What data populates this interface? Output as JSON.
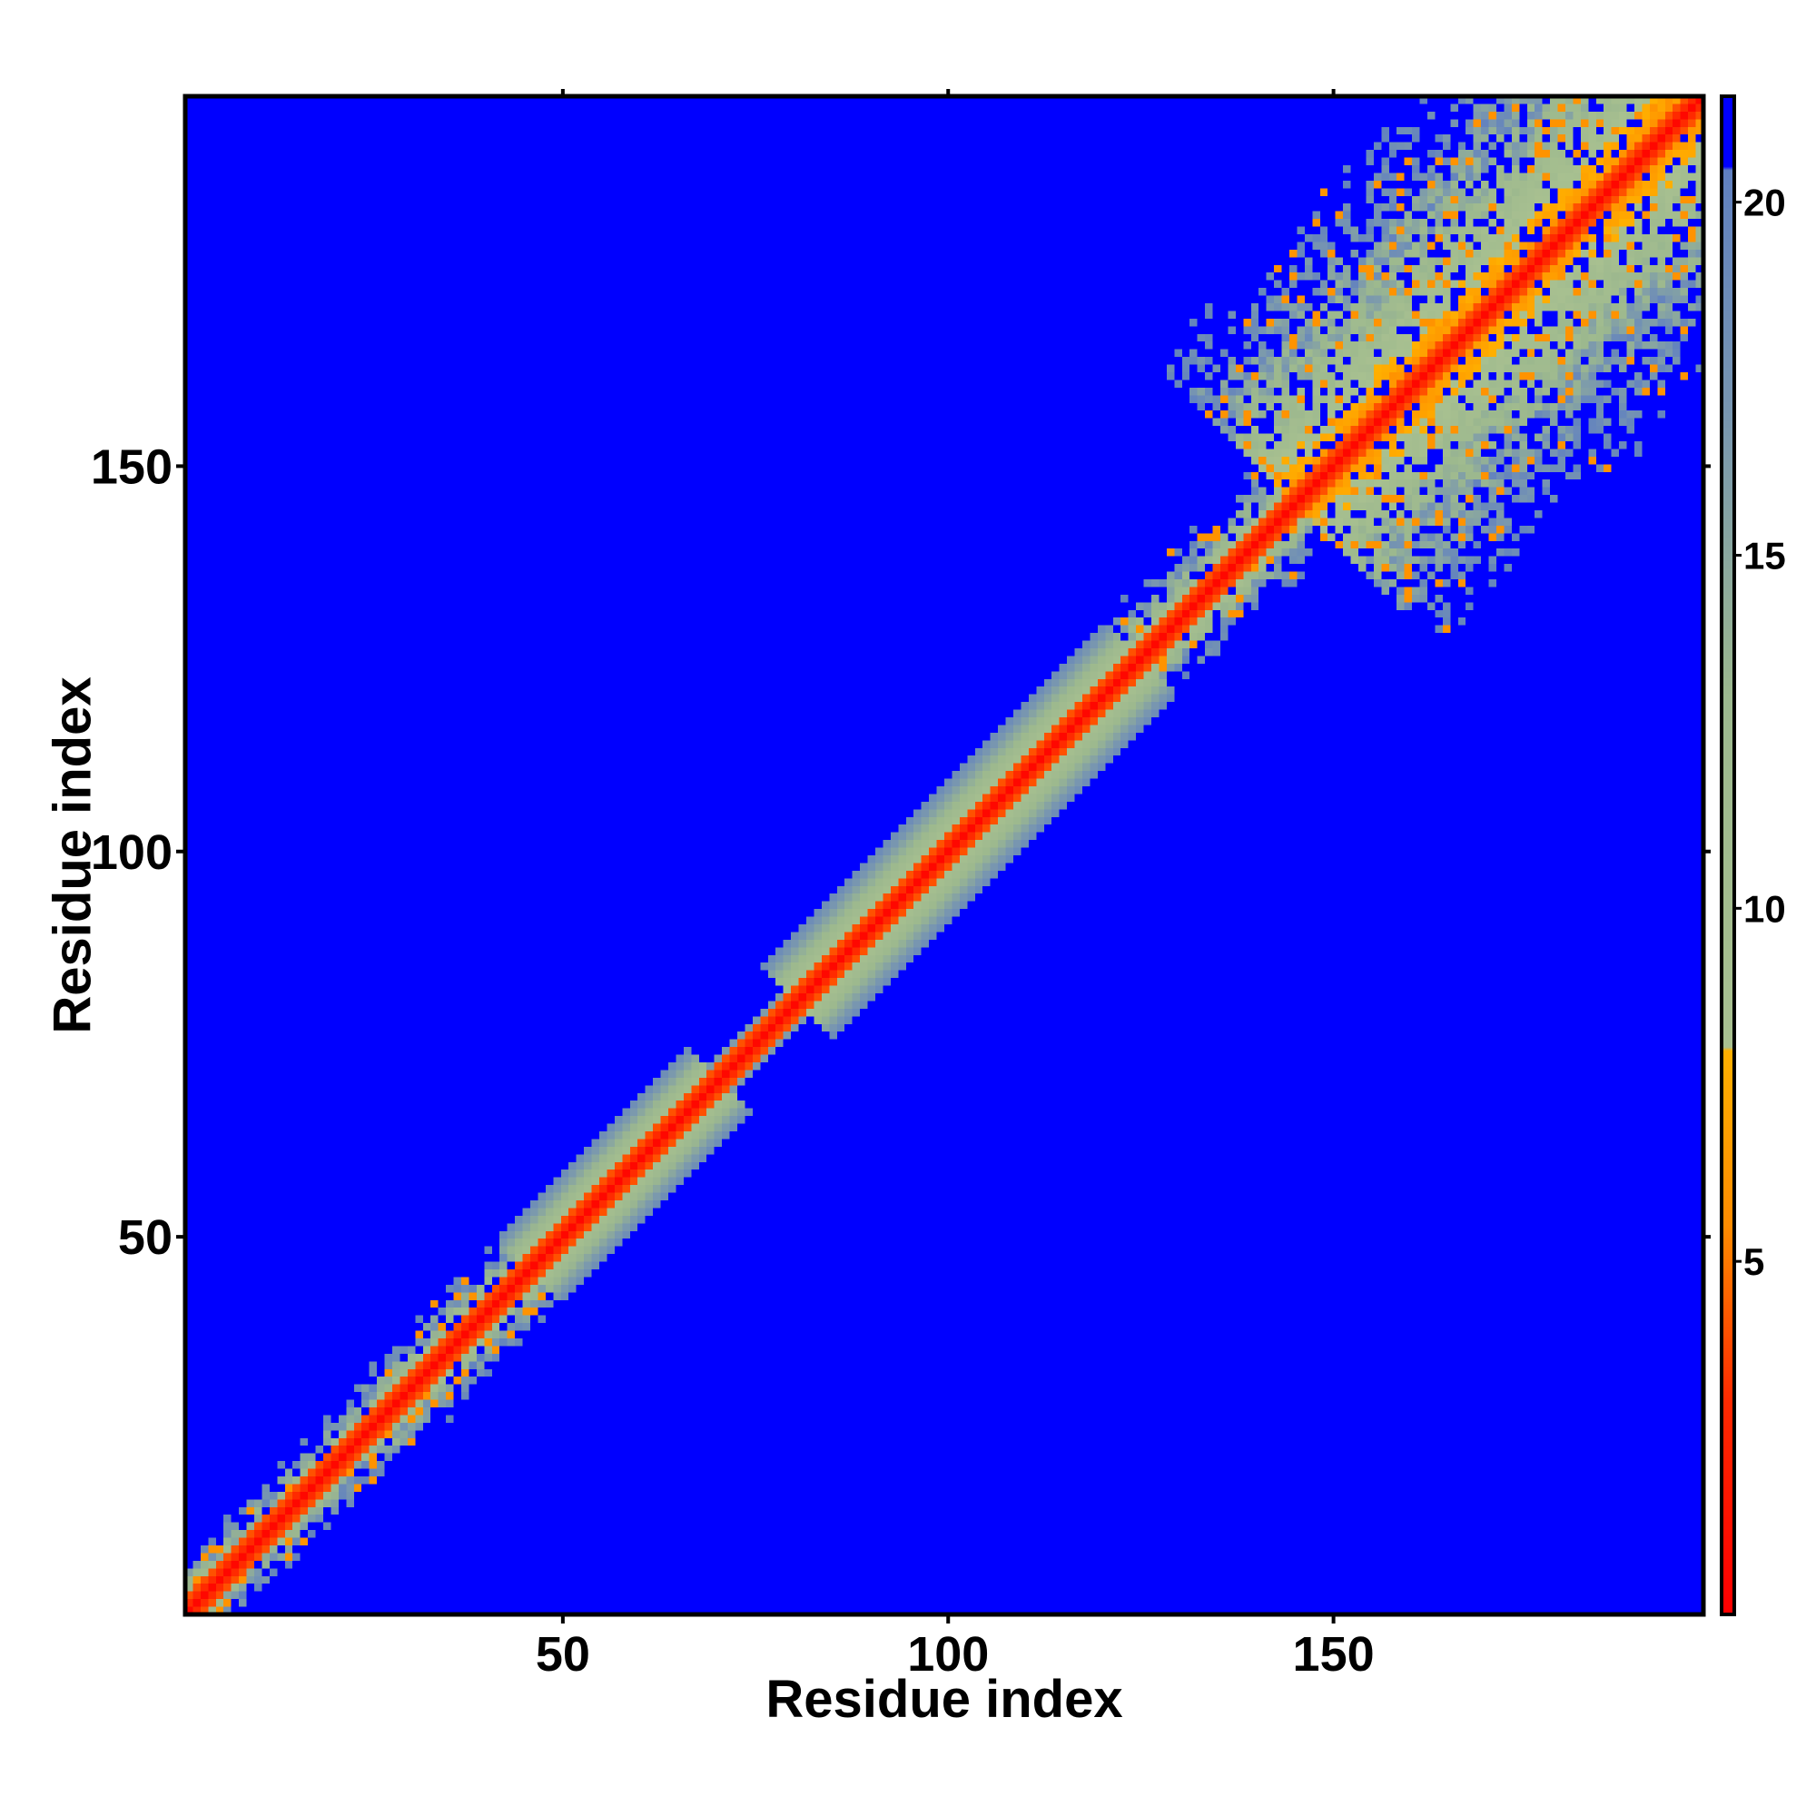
{
  "chart_data": {
    "type": "heatmap",
    "description_kind": "residue distance map",
    "xlabel": "Residue index",
    "ylabel": "Residue index",
    "xlim": [
      1,
      198
    ],
    "ylim": [
      1,
      198
    ],
    "x_ticks": [
      50,
      100,
      150
    ],
    "y_ticks": [
      50,
      100,
      150
    ],
    "colorbar": {
      "ticks": [
        5,
        10,
        15,
        20
      ],
      "range": [
        0,
        21.5
      ],
      "stops": [
        {
          "value": 0,
          "color": "#ff0000"
        },
        {
          "value": 3,
          "color": "#ff2a00"
        },
        {
          "value": 5.5,
          "color": "#ff8c00"
        },
        {
          "value": 8,
          "color": "#ffb000"
        },
        {
          "value": 8.01,
          "color": "#a8c090"
        },
        {
          "value": 13,
          "color": "#9cb88e"
        },
        {
          "value": 17,
          "color": "#7896b0"
        },
        {
          "value": 20.5,
          "color": "#6080c0"
        },
        {
          "value": 20.51,
          "color": "#0000ff"
        }
      ]
    },
    "background_value_color": "#0000ff",
    "diagonal_value": 0,
    "structure_segments": [
      {
        "from": 1,
        "to": 25,
        "band_width": 6,
        "noisy": true
      },
      {
        "from": 25,
        "to": 45,
        "band_width": 7,
        "noisy": true
      },
      {
        "from": 45,
        "to": 70,
        "band_width": 9,
        "noisy": false
      },
      {
        "from": 70,
        "to": 80,
        "band_width": 4,
        "noisy": false
      },
      {
        "from": 80,
        "to": 125,
        "band_width": 10,
        "noisy": false
      },
      {
        "from": 125,
        "to": 145,
        "band_width": 8,
        "noisy": true
      },
      {
        "from": 145,
        "to": 198,
        "band_width": 30,
        "noisy": true
      }
    ]
  }
}
